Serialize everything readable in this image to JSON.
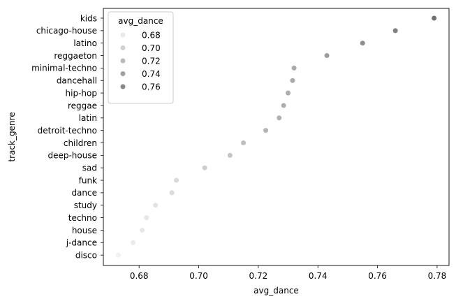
{
  "chart_data": {
    "type": "scatter",
    "title": "",
    "xlabel": "avg_dance",
    "ylabel": "track_genre",
    "xlim": [
      0.668,
      0.784
    ],
    "x_ticks": [
      "0.68",
      "0.70",
      "0.72",
      "0.74",
      "0.76",
      "0.78"
    ],
    "x_tick_values": [
      0.68,
      0.7,
      0.72,
      0.74,
      0.76,
      0.78
    ],
    "categories": [
      "kids",
      "chicago-house",
      "latino",
      "reggaeton",
      "minimal-techno",
      "dancehall",
      "hip-hop",
      "reggae",
      "latin",
      "detroit-techno",
      "children",
      "deep-house",
      "sad",
      "funk",
      "dance",
      "study",
      "techno",
      "house",
      "j-dance",
      "disco"
    ],
    "points": [
      {
        "genre": "kids",
        "avg_dance": 0.779
      },
      {
        "genre": "chicago-house",
        "avg_dance": 0.766
      },
      {
        "genre": "latino",
        "avg_dance": 0.755
      },
      {
        "genre": "reggaeton",
        "avg_dance": 0.743
      },
      {
        "genre": "minimal-techno",
        "avg_dance": 0.732
      },
      {
        "genre": "dancehall",
        "avg_dance": 0.7315
      },
      {
        "genre": "hip-hop",
        "avg_dance": 0.73
      },
      {
        "genre": "reggae",
        "avg_dance": 0.7285
      },
      {
        "genre": "latin",
        "avg_dance": 0.727
      },
      {
        "genre": "detroit-techno",
        "avg_dance": 0.7225
      },
      {
        "genre": "children",
        "avg_dance": 0.715
      },
      {
        "genre": "deep-house",
        "avg_dance": 0.7105
      },
      {
        "genre": "sad",
        "avg_dance": 0.702
      },
      {
        "genre": "funk",
        "avg_dance": 0.6925
      },
      {
        "genre": "dance",
        "avg_dance": 0.691
      },
      {
        "genre": "study",
        "avg_dance": 0.6855
      },
      {
        "genre": "techno",
        "avg_dance": 0.6825
      },
      {
        "genre": "house",
        "avg_dance": 0.681
      },
      {
        "genre": "j-dance",
        "avg_dance": 0.678
      },
      {
        "genre": "disco",
        "avg_dance": 0.673
      }
    ],
    "hue": {
      "name": "avg_dance",
      "range": [
        0.668,
        0.784
      ],
      "color_low": "#f7f7f7",
      "color_high": "#6b6b6b"
    },
    "legend": {
      "title": "avg_dance",
      "placement": "top-left",
      "entries": [
        {
          "label": "0.68",
          "value": 0.68
        },
        {
          "label": "0.70",
          "value": 0.7
        },
        {
          "label": "0.72",
          "value": 0.72
        },
        {
          "label": "0.74",
          "value": 0.74
        },
        {
          "label": "0.76",
          "value": 0.76
        }
      ]
    },
    "grid": false
  }
}
